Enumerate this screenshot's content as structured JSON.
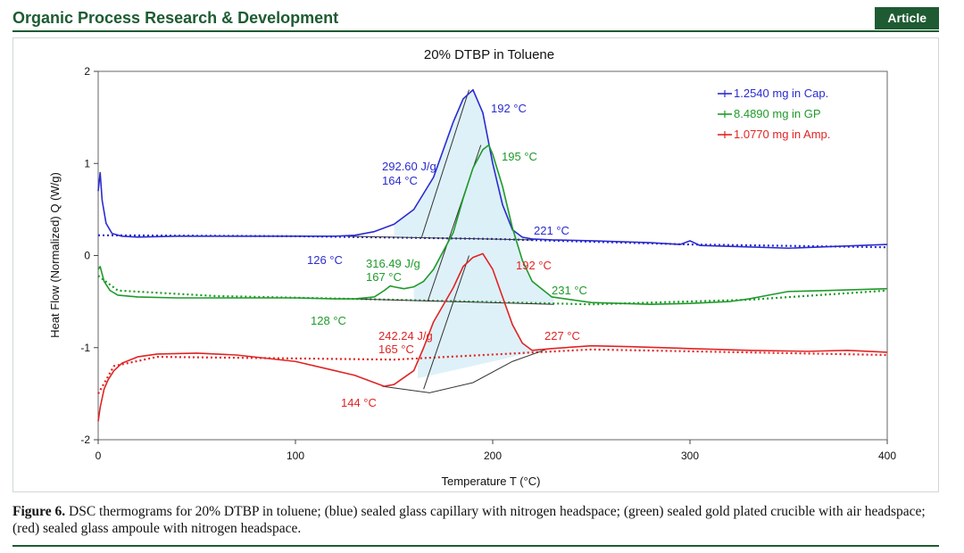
{
  "journal": {
    "title": "Organic Process Research & Development",
    "badge": "Article"
  },
  "caption": {
    "label": "Figure 6.",
    "text": "DSC thermograms for 20% DTBP in toluene; (blue) sealed glass capillary with nitrogen headspace; (green) sealed gold plated crucible with air headspace; (red) sealed glass ampoule with nitrogen headspace."
  },
  "colors": {
    "blue": "#2b2bd0",
    "green": "#1f9a2a",
    "red": "#e02424",
    "fill": "#dbeff7",
    "journal": "#1e5b32"
  },
  "chart_data": {
    "type": "line",
    "title": "20% DTBP in Toluene",
    "xlabel": "Temperature  T (°C)",
    "ylabel": "Heat Flow (Normalized)  Q (W/g)",
    "xlim": [
      0,
      400
    ],
    "ylim": [
      -2,
      2
    ],
    "xticks": [
      0,
      100,
      200,
      300,
      400
    ],
    "yticks": [
      -2,
      -1,
      0,
      1,
      2
    ],
    "legend_position": "top-right",
    "series": [
      {
        "name": "1.2540 mg in Cap.",
        "color": "#2b2bd0",
        "x": [
          0,
          1,
          2,
          4,
          7,
          12,
          20,
          40,
          60,
          80,
          100,
          120,
          130,
          140,
          150,
          160,
          170,
          180,
          185,
          190,
          195,
          200,
          205,
          210,
          215,
          220,
          230,
          250,
          280,
          295,
          300,
          305,
          320,
          350,
          400
        ],
        "y": [
          0.7,
          0.9,
          0.6,
          0.35,
          0.24,
          0.21,
          0.2,
          0.21,
          0.21,
          0.21,
          0.21,
          0.21,
          0.22,
          0.26,
          0.34,
          0.5,
          0.85,
          1.45,
          1.7,
          1.8,
          1.55,
          1.0,
          0.55,
          0.28,
          0.2,
          0.18,
          0.17,
          0.16,
          0.14,
          0.12,
          0.16,
          0.11,
          0.1,
          0.08,
          0.12
        ]
      },
      {
        "name": "8.4890 mg in GP",
        "color": "#1f9a2a",
        "x": [
          0,
          1,
          3,
          6,
          10,
          20,
          40,
          60,
          80,
          100,
          120,
          130,
          140,
          145,
          148,
          150,
          155,
          160,
          165,
          170,
          180,
          185,
          190,
          195,
          198,
          200,
          205,
          210,
          215,
          220,
          230,
          250,
          280,
          300,
          320,
          330,
          340,
          350,
          370,
          400
        ],
        "y": [
          -0.15,
          -0.12,
          -0.28,
          -0.38,
          -0.43,
          -0.45,
          -0.46,
          -0.46,
          -0.46,
          -0.46,
          -0.47,
          -0.47,
          -0.45,
          -0.38,
          -0.33,
          -0.34,
          -0.36,
          -0.34,
          -0.28,
          -0.15,
          0.25,
          0.62,
          0.95,
          1.15,
          1.2,
          1.1,
          0.75,
          0.3,
          -0.05,
          -0.28,
          -0.45,
          -0.51,
          -0.53,
          -0.52,
          -0.5,
          -0.47,
          -0.43,
          -0.39,
          -0.38,
          -0.36
        ]
      },
      {
        "name": "1.0770 mg in Amp.",
        "color": "#e02424",
        "x": [
          0,
          1,
          3,
          5,
          8,
          12,
          20,
          30,
          50,
          70,
          100,
          120,
          130,
          140,
          145,
          150,
          160,
          165,
          170,
          180,
          185,
          190,
          195,
          200,
          205,
          210,
          215,
          220,
          230,
          250,
          270,
          300,
          330,
          360,
          380,
          400
        ],
        "y": [
          -1.8,
          -1.65,
          -1.45,
          -1.35,
          -1.25,
          -1.17,
          -1.1,
          -1.07,
          -1.06,
          -1.08,
          -1.15,
          -1.25,
          -1.3,
          -1.38,
          -1.42,
          -1.4,
          -1.25,
          -1.0,
          -0.72,
          -0.35,
          -0.12,
          -0.02,
          0.02,
          -0.15,
          -0.45,
          -0.75,
          -0.95,
          -1.03,
          -1.01,
          -0.98,
          -0.99,
          -1.01,
          -1.03,
          -1.04,
          -1.03,
          -1.05
        ]
      }
    ],
    "annotations": [
      {
        "text": "192 °C",
        "color": "#2b2bd0"
      },
      {
        "text": "292.60 J/g",
        "color": "#2b2bd0"
      },
      {
        "text": "164 °C",
        "color": "#2b2bd0"
      },
      {
        "text": "221 °C",
        "color": "#2b2bd0"
      },
      {
        "text": "126 °C",
        "color": "#2b2bd0"
      },
      {
        "text": "195 °C",
        "color": "#1f9a2a"
      },
      {
        "text": "316.49 J/g",
        "color": "#1f9a2a"
      },
      {
        "text": "167 °C",
        "color": "#1f9a2a"
      },
      {
        "text": "231 °C",
        "color": "#1f9a2a"
      },
      {
        "text": "128 °C",
        "color": "#1f9a2a"
      },
      {
        "text": "192 °C",
        "color": "#e02424"
      },
      {
        "text": "242.24 J/g",
        "color": "#e02424"
      },
      {
        "text": "165 °C",
        "color": "#e02424"
      },
      {
        "text": "227 °C",
        "color": "#e02424"
      },
      {
        "text": "144 °C",
        "color": "#e02424"
      }
    ]
  }
}
